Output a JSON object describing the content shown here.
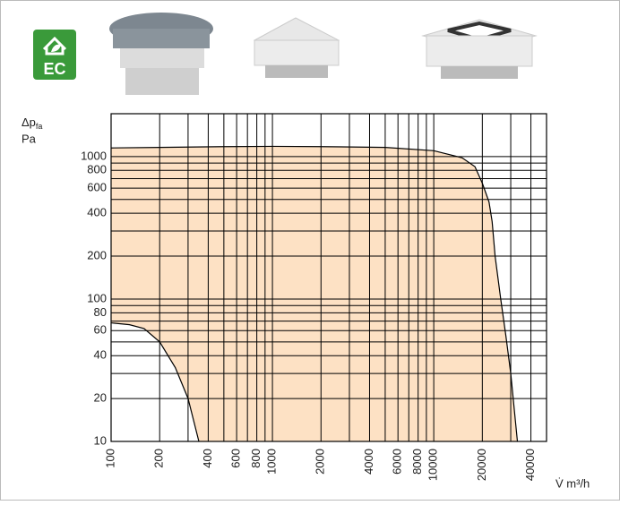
{
  "badge": "EC",
  "chart_data": {
    "type": "area",
    "y_label": "Δp",
    "y_label_sub": "fa",
    "y_unit": "Pa",
    "x_label": "V̇ m³/h",
    "log_x": true,
    "log_y": true,
    "grid": true,
    "fill_color": "#fde1c4",
    "line_color": "#000000",
    "xlim": [
      100,
      50000
    ],
    "ylim": [
      10,
      2000
    ],
    "xticks": [
      100,
      200,
      400,
      600,
      800,
      1000,
      2000,
      4000,
      6000,
      8000,
      10000,
      20000,
      40000
    ],
    "x_minor_grid": [
      300,
      500,
      700,
      900,
      3000,
      5000,
      7000,
      9000,
      30000
    ],
    "yticks": [
      10,
      20,
      40,
      60,
      80,
      100,
      200,
      400,
      600,
      800,
      1000
    ],
    "y_minor_grid": [
      30,
      50,
      70,
      90,
      300,
      500,
      700,
      900
    ],
    "series": [
      {
        "x": [
          100,
          200,
          500,
          1000,
          2000,
          5000,
          10000,
          15000,
          18000,
          20000,
          22000,
          23000,
          24000,
          26000,
          28000,
          30000,
          33000
        ],
        "values": [
          1150,
          1160,
          1175,
          1180,
          1175,
          1160,
          1100,
          980,
          850,
          650,
          480,
          350,
          200,
          100,
          55,
          30,
          10
        ]
      },
      {
        "x": [
          100,
          130,
          160,
          200,
          250,
          300,
          350
        ],
        "values": [
          68,
          66,
          62,
          50,
          33,
          20,
          10
        ]
      }
    ]
  }
}
